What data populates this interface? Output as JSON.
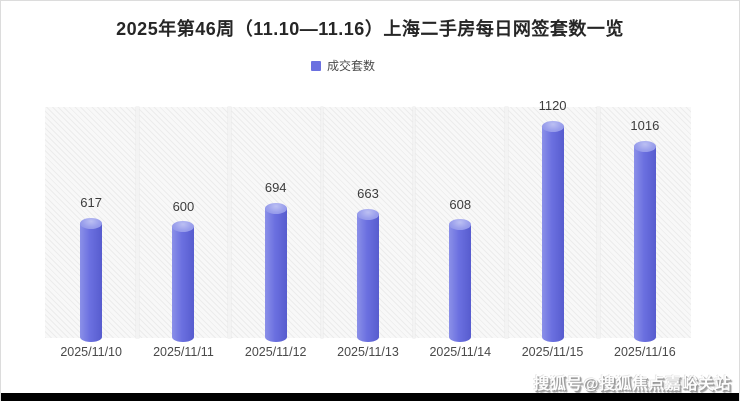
{
  "title": "2025年第46周（11.10—11.16）上海二手房每日网签套数一览",
  "legend": {
    "label": "成交套数",
    "color": "#6b70e0"
  },
  "watermark": "搜狐号@搜狐焦点嘉峪关站",
  "chart_data": {
    "type": "bar",
    "title": "2025年第46周（11.10—11.16）上海二手房每日网签套数一览",
    "series_name": "成交套数",
    "categories": [
      "2025/11/10",
      "2025/11/11",
      "2025/11/12",
      "2025/11/13",
      "2025/11/14",
      "2025/11/15",
      "2025/11/16"
    ],
    "values": [
      617,
      600,
      694,
      663,
      608,
      1120,
      1016
    ],
    "xlabel": "",
    "ylabel": "",
    "ylim": [
      0,
      1200
    ],
    "y_axis_visible": false,
    "grid": "hatched-column-bands",
    "bar_style": "cylinder",
    "bar_color": "#6b70e0",
    "bar_cap_color": "#9ba0ec",
    "value_labels_shown": true,
    "legend_position": "top-center"
  }
}
